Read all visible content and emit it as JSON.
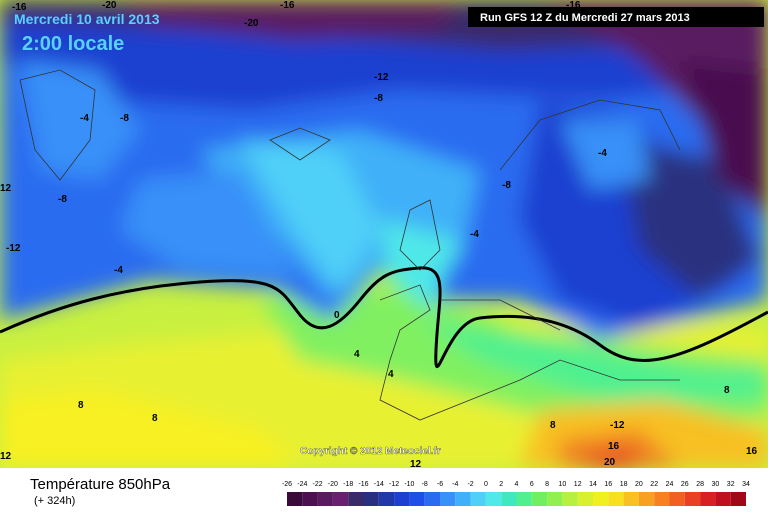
{
  "header": {
    "date": "Mercredi 10 avril 2013",
    "time": "2:00 locale",
    "run": "Run GFS 12 Z du Mercredi 27 mars 2013"
  },
  "copyright": "Copyright © 2012 Meteociel.fr",
  "footer": {
    "title": "Température 850hPa",
    "lead": "(+ 324h)"
  },
  "contour_labels": [
    "-16",
    "-20",
    "-20",
    "-16",
    "-16",
    "-12",
    "-8",
    "-4",
    "-8",
    "-4",
    "-8",
    "12",
    "-8",
    "-12",
    "-4",
    "-4",
    "0",
    "4",
    "4",
    "8",
    "8",
    "12",
    "-12",
    "16",
    "20",
    "8",
    "12",
    "16",
    "8"
  ],
  "legend": {
    "labels": [
      -26,
      -24,
      -22,
      -20,
      -18,
      -16,
      -14,
      -12,
      -10,
      -8,
      -6,
      -4,
      -2,
      0,
      2,
      4,
      6,
      8,
      10,
      12,
      14,
      16,
      18,
      20,
      22,
      24,
      26,
      28,
      30,
      32,
      34
    ],
    "colors": [
      "#3a0a3a",
      "#4a1050",
      "#5a1a60",
      "#6a2070",
      "#3a2a6a",
      "#2a3080",
      "#2038a8",
      "#1e40d0",
      "#1e50e8",
      "#2a6cf0",
      "#3890f8",
      "#40b0f8",
      "#50d0f8",
      "#50e8e8",
      "#40e8c0",
      "#50f090",
      "#70f060",
      "#90f050",
      "#b8f040",
      "#d8f030",
      "#f0f020",
      "#f8e020",
      "#f8c020",
      "#f8a020",
      "#f88020",
      "#f06020",
      "#e84020",
      "#d82020",
      "#c01020",
      "#a00818"
    ]
  }
}
